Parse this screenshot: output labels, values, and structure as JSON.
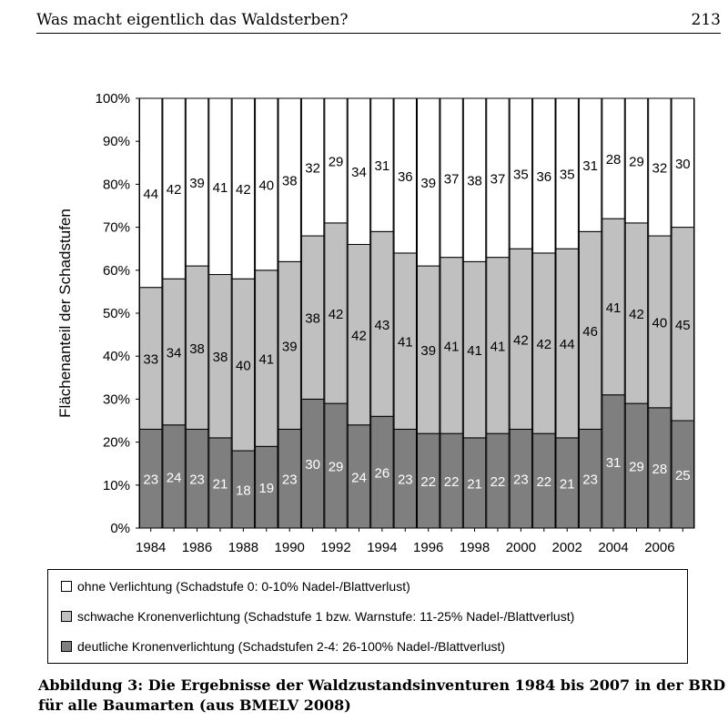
{
  "header": {
    "title": "Was macht eigentlich das Waldsterben?",
    "page_number": "213"
  },
  "colors": {
    "ohne": "#ffffff",
    "schwach": "#c0c0c0",
    "deutlich": "#7f7f7f",
    "border": "#000000"
  },
  "chart_data": {
    "type": "bar",
    "stacked": true,
    "years": [
      "1984",
      "1985",
      "1986",
      "1987",
      "1988",
      "1989",
      "1990",
      "1991",
      "1992",
      "1993",
      "1994",
      "1995",
      "1996",
      "1997",
      "1998",
      "1999",
      "2000",
      "2001",
      "2002",
      "2003",
      "2004",
      "2005",
      "2006",
      "2007"
    ],
    "x_tick_labels": [
      "1984",
      "1986",
      "1988",
      "1990",
      "1992",
      "1994",
      "1996",
      "1998",
      "2000",
      "2002",
      "2004",
      "2006"
    ],
    "y_tick_labels": [
      "0%",
      "10%",
      "20%",
      "30%",
      "40%",
      "50%",
      "60%",
      "70%",
      "80%",
      "90%",
      "100%"
    ],
    "ylim": [
      0,
      100
    ],
    "ylabel": "Flächenanteil der Schadstufen",
    "series": [
      {
        "key": "deutlich",
        "name": "deutliche Kronenverlichtung",
        "values": [
          23,
          24,
          23,
          21,
          18,
          19,
          23,
          30,
          29,
          24,
          26,
          23,
          22,
          22,
          21,
          22,
          23,
          22,
          21,
          23,
          31,
          29,
          28,
          25
        ]
      },
      {
        "key": "schwach",
        "name": "schwache Kronenverlichtung",
        "values": [
          33,
          34,
          38,
          38,
          40,
          41,
          39,
          38,
          42,
          42,
          43,
          41,
          39,
          41,
          41,
          41,
          42,
          42,
          44,
          46,
          41,
          42,
          40,
          45
        ]
      },
      {
        "key": "ohne",
        "name": "ohne Verlichtung",
        "values": [
          44,
          42,
          39,
          41,
          42,
          40,
          38,
          32,
          29,
          34,
          31,
          36,
          39,
          37,
          38,
          37,
          35,
          36,
          35,
          31,
          28,
          29,
          32,
          30
        ]
      }
    ]
  },
  "legend": {
    "ohne": "ohne Verlichtung (Schadstufe 0: 0-10% Nadel-/Blattverlust)",
    "schwach": "schwache Kronenverlichtung (Schadstufe 1 bzw. Warnstufe: 11-25% Nadel-/Blattverlust)",
    "deutlich": "deutliche Kronenverlichtung (Schadstufen 2-4: 26-100% Nadel-/Blattverlust)"
  },
  "caption": {
    "line1": "Abbildung 3: Die Ergebnisse der Waldzustandsinventuren 1984 bis 2007 in der BRD",
    "line2": "für alle Baumarten (aus BMELV 2008)"
  }
}
